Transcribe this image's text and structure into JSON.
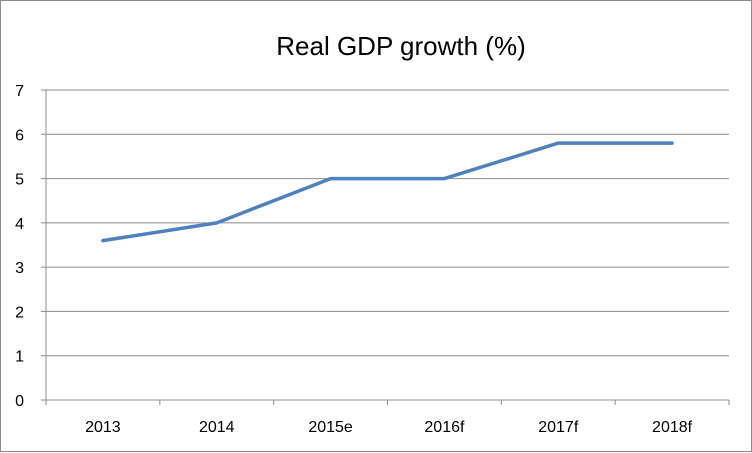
{
  "chart_data": {
    "type": "line",
    "title": "Real GDP growth (%)",
    "categories": [
      "2013",
      "2014",
      "2015e",
      "2016f",
      "2017f",
      "2018f"
    ],
    "series": [
      {
        "values": [
          3.6,
          4.0,
          5.0,
          5.0,
          5.8,
          5.8
        ],
        "color": "#4f81bd"
      }
    ],
    "xlabel": "",
    "ylabel": "",
    "ylim": [
      0,
      7
    ],
    "yticks": [
      "0",
      "1",
      "2",
      "3",
      "4",
      "5",
      "6",
      "7"
    ],
    "grid": true,
    "legend": "none",
    "gridline_color": "#8c8c8c",
    "axis_color": "#8c8c8c"
  }
}
